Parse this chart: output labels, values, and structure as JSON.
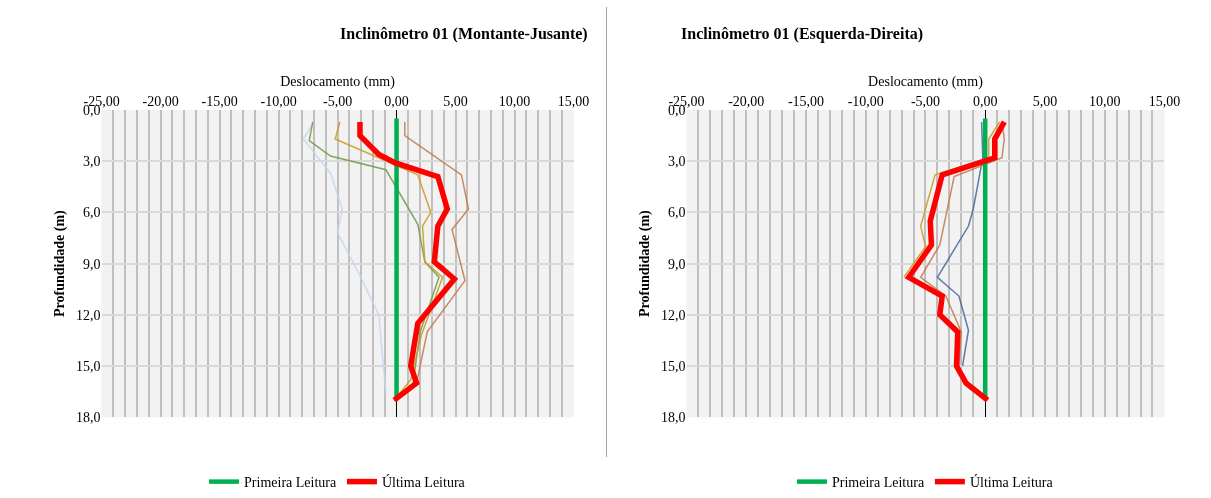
{
  "chart_data": [
    {
      "type": "line",
      "title": "Inclinômetro 01 (Montante-Jusante)",
      "xlabel": "Deslocamento (mm)",
      "ylabel": "Profundidade (m)",
      "orientation": "horizontal",
      "grid": true,
      "legend": "bottom",
      "marker": "none",
      "line_style": "solid",
      "xlim": [
        -25,
        15
      ],
      "ylim": [
        18,
        0
      ],
      "xticks": [
        {
          "value": -25,
          "label": "-25,00"
        },
        {
          "value": -24,
          "label": null
        },
        {
          "value": -23,
          "label": null
        },
        {
          "value": -22,
          "label": null
        },
        {
          "value": -21,
          "label": null
        },
        {
          "value": -20,
          "label": "-20,00"
        },
        {
          "value": -19,
          "label": null
        },
        {
          "value": -18,
          "label": null
        },
        {
          "value": -17,
          "label": null
        },
        {
          "value": -16,
          "label": null
        },
        {
          "value": -15,
          "label": "-15,00"
        },
        {
          "value": -14,
          "label": null
        },
        {
          "value": -13,
          "label": null
        },
        {
          "value": -12,
          "label": null
        },
        {
          "value": -11,
          "label": null
        },
        {
          "value": -10,
          "label": "-10,00"
        },
        {
          "value": -9,
          "label": null
        },
        {
          "value": -8,
          "label": null
        },
        {
          "value": -7,
          "label": null
        },
        {
          "value": -6,
          "label": null
        },
        {
          "value": -5,
          "label": "-5,00"
        },
        {
          "value": -4,
          "label": null
        },
        {
          "value": -3,
          "label": null
        },
        {
          "value": -2,
          "label": null
        },
        {
          "value": -1,
          "label": null
        },
        {
          "value": 0,
          "label": "0,00"
        },
        {
          "value": 1,
          "label": null
        },
        {
          "value": 2,
          "label": null
        },
        {
          "value": 3,
          "label": null
        },
        {
          "value": 4,
          "label": null
        },
        {
          "value": 5,
          "label": "5,00"
        },
        {
          "value": 6,
          "label": null
        },
        {
          "value": 7,
          "label": null
        },
        {
          "value": 8,
          "label": null
        },
        {
          "value": 9,
          "label": null
        },
        {
          "value": 10,
          "label": "10,00"
        },
        {
          "value": 11,
          "label": null
        },
        {
          "value": 12,
          "label": null
        },
        {
          "value": 13,
          "label": null
        },
        {
          "value": 14,
          "label": null
        },
        {
          "value": 15,
          "label": "15,00"
        }
      ],
      "yticks": [
        {
          "value": 0,
          "label": "0,0"
        },
        {
          "value": 3,
          "label": "3,0"
        },
        {
          "value": 6,
          "label": "6,0"
        },
        {
          "value": 9,
          "label": "9,0"
        },
        {
          "value": 12,
          "label": "12,0"
        },
        {
          "value": 15,
          "label": "15,0"
        },
        {
          "value": 18,
          "label": "18,0"
        }
      ],
      "series": [
        {
          "color": "#c5d6ee",
          "x": [
            0.7,
            1.7,
            3.7,
            5.8,
            7.2,
            9.7,
            12.0,
            16.7
          ],
          "values": [
            -7.0,
            -7.9,
            -5.6,
            -4.6,
            -5.0,
            -3.1,
            -1.5,
            -0.9
          ]
        },
        {
          "color": "#70994a",
          "x": [
            0.7,
            1.8,
            2.7,
            3.5,
            6.7,
            8.9,
            9.8,
            13.0,
            16.0,
            17.0
          ],
          "values": [
            -7.1,
            -7.4,
            -5.6,
            -0.9,
            1.8,
            2.4,
            3.6,
            2.0,
            1.4,
            -0.2
          ]
        },
        {
          "color": "#c0784a",
          "x": [
            0.7,
            1.5,
            3.8,
            5.8,
            7.0,
            10.0,
            13.0,
            16.0,
            17.0
          ],
          "values": [
            0.7,
            0.7,
            5.5,
            6.1,
            4.7,
            5.8,
            2.6,
            1.7,
            -0.2
          ]
        },
        {
          "color": "#c89a1a",
          "x": [
            0.7,
            1.7,
            3.8,
            6.0,
            6.8,
            8.9,
            9.8,
            13.2,
            15.8,
            17.0
          ],
          "values": [
            -4.8,
            -5.2,
            1.8,
            2.9,
            2.2,
            2.4,
            3.9,
            2.1,
            1.2,
            -0.2
          ]
        },
        {
          "name": "Primeira Leitura",
          "color": "#00b050",
          "x": [
            0.5,
            17.0
          ],
          "values": [
            0.0,
            0.0
          ]
        },
        {
          "name": "Última Leitura",
          "color": "#ff0000",
          "x": [
            0.7,
            1.5,
            2.6,
            3.1,
            3.9,
            5.8,
            6.8,
            8.9,
            9.9,
            12.5,
            15.0,
            16.0,
            17.0
          ],
          "values": [
            -3.1,
            -3.1,
            -1.5,
            -0.1,
            3.5,
            4.3,
            3.5,
            3.2,
            4.9,
            1.8,
            1.2,
            1.7,
            -0.2
          ]
        }
      ]
    },
    {
      "type": "line",
      "title": "Inclinômetro 01 (Esquerda-Direita)",
      "xlabel": "Deslocamento (mm)",
      "ylabel": "Profundidade (m)",
      "orientation": "horizontal",
      "grid": true,
      "legend": "bottom",
      "marker": "none",
      "line_style": "solid",
      "xlim": [
        -25,
        15
      ],
      "ylim": [
        18,
        0
      ],
      "xticks": [
        {
          "value": -25,
          "label": "-25,00"
        },
        {
          "value": -24,
          "label": null
        },
        {
          "value": -23,
          "label": null
        },
        {
          "value": -22,
          "label": null
        },
        {
          "value": -21,
          "label": null
        },
        {
          "value": -20,
          "label": "-20,00"
        },
        {
          "value": -19,
          "label": null
        },
        {
          "value": -18,
          "label": null
        },
        {
          "value": -17,
          "label": null
        },
        {
          "value": -16,
          "label": null
        },
        {
          "value": -15,
          "label": "-15,00"
        },
        {
          "value": -14,
          "label": null
        },
        {
          "value": -13,
          "label": null
        },
        {
          "value": -12,
          "label": null
        },
        {
          "value": -11,
          "label": null
        },
        {
          "value": -10,
          "label": "-10,00"
        },
        {
          "value": -9,
          "label": null
        },
        {
          "value": -8,
          "label": null
        },
        {
          "value": -7,
          "label": null
        },
        {
          "value": -6,
          "label": null
        },
        {
          "value": -5,
          "label": "-5,00"
        },
        {
          "value": -4,
          "label": null
        },
        {
          "value": -3,
          "label": null
        },
        {
          "value": -2,
          "label": null
        },
        {
          "value": -1,
          "label": null
        },
        {
          "value": 0,
          "label": "0,00"
        },
        {
          "value": 1,
          "label": null
        },
        {
          "value": 2,
          "label": null
        },
        {
          "value": 3,
          "label": null
        },
        {
          "value": 4,
          "label": null
        },
        {
          "value": 5,
          "label": "5,00"
        },
        {
          "value": 6,
          "label": null
        },
        {
          "value": 7,
          "label": null
        },
        {
          "value": 8,
          "label": null
        },
        {
          "value": 9,
          "label": null
        },
        {
          "value": 10,
          "label": "10,00"
        },
        {
          "value": 11,
          "label": null
        },
        {
          "value": 12,
          "label": null
        },
        {
          "value": 13,
          "label": null
        },
        {
          "value": 14,
          "label": null
        },
        {
          "value": 15,
          "label": "15,00"
        }
      ],
      "yticks": [
        {
          "value": 0,
          "label": "0,0"
        },
        {
          "value": 3,
          "label": "3,0"
        },
        {
          "value": 6,
          "label": "6,0"
        },
        {
          "value": 9,
          "label": "9,0"
        },
        {
          "value": 12,
          "label": "12,0"
        },
        {
          "value": 15,
          "label": "15,0"
        },
        {
          "value": 18,
          "label": "18,0"
        }
      ],
      "series": [
        {
          "color": "#44659a",
          "x": [
            0.7,
            2.8,
            5.8,
            6.8,
            9.8,
            10.9,
            12.9,
            15.0
          ],
          "values": [
            -0.3,
            -0.2,
            -1.0,
            -1.4,
            -4.0,
            -2.2,
            -1.4,
            -1.9
          ]
        },
        {
          "color": "#c0784a",
          "x": [
            0.7,
            1.7,
            2.8,
            3.9,
            7.9,
            9.8,
            10.9,
            13.0,
            15.0,
            16.0,
            17.0
          ],
          "values": [
            1.4,
            1.6,
            1.4,
            -2.6,
            -3.8,
            -5.4,
            -3.3,
            -2.0,
            -2.2,
            -1.5,
            0.2
          ]
        },
        {
          "color": "#c89a1a",
          "x": [
            0.7,
            1.7,
            2.8,
            3.8,
            6.8,
            8.0,
            9.8
          ],
          "values": [
            1.2,
            0.3,
            0.3,
            -4.2,
            -5.4,
            -5.0,
            -6.8
          ]
        },
        {
          "name": "Primeira Leitura",
          "color": "#00b050",
          "x": [
            0.5,
            17.0
          ],
          "values": [
            0.0,
            0.0
          ]
        },
        {
          "name": "Última Leitura",
          "color": "#ff0000",
          "x": [
            0.7,
            1.7,
            2.8,
            3.8,
            6.5,
            7.9,
            9.8,
            10.9,
            12.0,
            13.0,
            15.0,
            16.0,
            17.0
          ],
          "values": [
            1.6,
            0.8,
            0.8,
            -3.6,
            -4.6,
            -4.5,
            -6.4,
            -3.6,
            -3.8,
            -2.3,
            -2.4,
            -1.6,
            0.2
          ]
        }
      ]
    }
  ]
}
